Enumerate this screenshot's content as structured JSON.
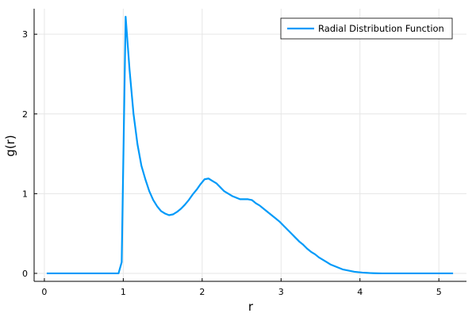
{
  "chart_data": {
    "type": "line",
    "title": "",
    "xlabel": "r",
    "ylabel": "g(r)",
    "xlim": [
      -0.13,
      5.35
    ],
    "ylim": [
      -0.1,
      3.32
    ],
    "x_ticks": [
      0,
      1,
      2,
      3,
      4,
      5
    ],
    "x_tick_labels": [
      "0",
      "1",
      "2",
      "3",
      "4",
      "5"
    ],
    "y_ticks": [
      0,
      1,
      2,
      3
    ],
    "y_tick_labels": [
      "0",
      "1",
      "2",
      "3"
    ],
    "grid": true,
    "legend_position": "top-right",
    "colors": {
      "series": "#009af9",
      "grid": "#e6e6e6",
      "axis": "#000000"
    },
    "series": [
      {
        "name": "Radial Distribution Function",
        "x": [
          0.03,
          0.1,
          0.2,
          0.3,
          0.4,
          0.5,
          0.6,
          0.7,
          0.8,
          0.9,
          0.94,
          0.98,
          1.03,
          1.08,
          1.13,
          1.18,
          1.23,
          1.28,
          1.33,
          1.38,
          1.43,
          1.48,
          1.53,
          1.58,
          1.63,
          1.68,
          1.73,
          1.78,
          1.83,
          1.88,
          1.93,
          1.98,
          2.03,
          2.08,
          2.13,
          2.18,
          2.23,
          2.28,
          2.33,
          2.38,
          2.43,
          2.48,
          2.53,
          2.58,
          2.63,
          2.68,
          2.73,
          2.78,
          2.83,
          2.88,
          2.93,
          2.98,
          3.03,
          3.08,
          3.13,
          3.18,
          3.23,
          3.28,
          3.33,
          3.38,
          3.43,
          3.48,
          3.53,
          3.58,
          3.63,
          3.68,
          3.73,
          3.78,
          3.83,
          3.88,
          3.93,
          3.98,
          4.03,
          4.08,
          4.13,
          4.18,
          4.23,
          4.28,
          4.33,
          4.38,
          4.43,
          4.48,
          4.53,
          4.58,
          4.63,
          4.68,
          4.73,
          4.78,
          4.83,
          4.88,
          4.93,
          4.98,
          5.03,
          5.08,
          5.13,
          5.18
        ],
        "y": [
          0.0,
          0.0,
          0.0,
          0.0,
          0.0,
          0.0,
          0.0,
          0.0,
          0.0,
          0.0,
          0.0,
          0.14,
          3.22,
          2.55,
          2.0,
          1.62,
          1.35,
          1.18,
          1.03,
          0.92,
          0.84,
          0.78,
          0.75,
          0.73,
          0.74,
          0.77,
          0.81,
          0.86,
          0.92,
          0.99,
          1.05,
          1.12,
          1.18,
          1.19,
          1.16,
          1.13,
          1.08,
          1.03,
          1.0,
          0.97,
          0.95,
          0.93,
          0.93,
          0.93,
          0.92,
          0.88,
          0.85,
          0.81,
          0.77,
          0.73,
          0.69,
          0.65,
          0.6,
          0.55,
          0.5,
          0.45,
          0.4,
          0.36,
          0.31,
          0.27,
          0.24,
          0.2,
          0.17,
          0.14,
          0.11,
          0.09,
          0.07,
          0.05,
          0.04,
          0.03,
          0.02,
          0.015,
          0.01,
          0.007,
          0.004,
          0.002,
          0.001,
          0.0,
          0.0,
          0.0,
          0.0,
          0.0,
          0.0,
          0.0,
          0.0,
          0.0,
          0.0,
          0.0,
          0.0,
          0.0,
          0.0,
          0.0,
          0.0,
          0.0,
          0.0,
          0.0
        ]
      }
    ]
  }
}
